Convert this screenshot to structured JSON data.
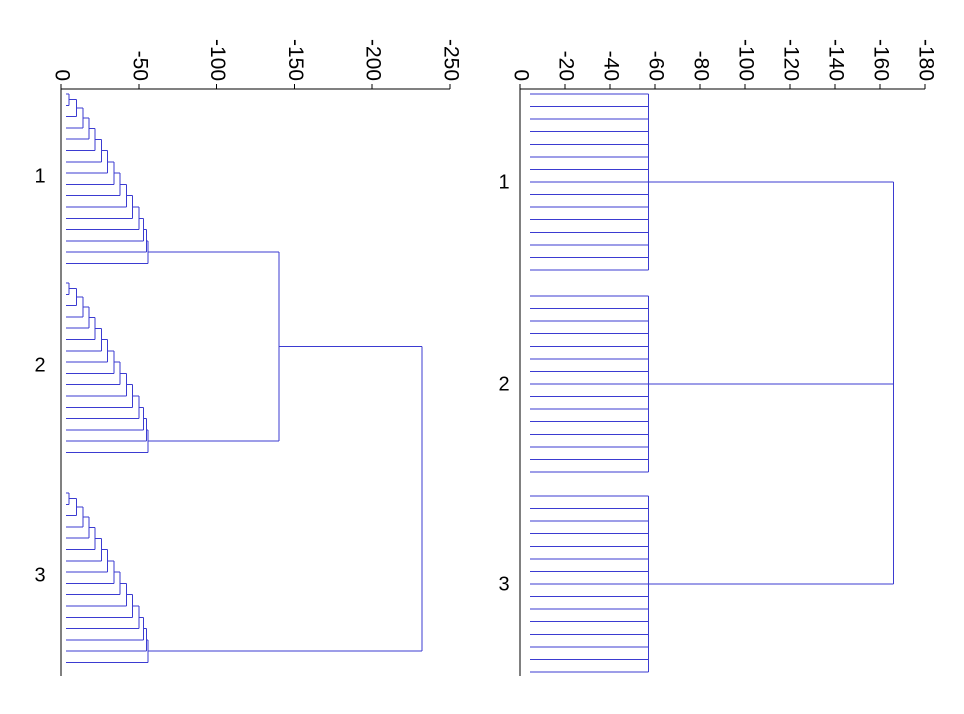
{
  "colors": {
    "branch": "#3b3bd1",
    "axis": "#000000",
    "background": "#ffffff"
  },
  "chart_data": [
    {
      "type": "dendrogram",
      "orientation": "horizontal",
      "x_axis": {
        "ticks": [
          0,
          -50,
          -100,
          -150,
          -200,
          -250
        ],
        "tick_labels": [
          "0",
          "-50",
          "-100",
          "-150",
          "-200",
          "-250"
        ],
        "range": [
          0,
          -250
        ]
      },
      "cluster_labels": [
        "1",
        "2",
        "3"
      ],
      "leaves_per_cluster": 16,
      "within_cluster_merge_heights": [
        -5,
        -10,
        -14,
        -18,
        -22,
        -26,
        -30,
        -34,
        -38,
        -42,
        -46,
        -50,
        -53,
        -55,
        -56
      ],
      "cluster_merge_heights": [
        -57,
        -57,
        -57
      ],
      "top_merges": [
        {
          "clusters": [
            "1",
            "2"
          ],
          "height": -140
        },
        {
          "clusters": [
            "1+2",
            "3"
          ],
          "height": -232
        }
      ]
    },
    {
      "type": "dendrogram",
      "orientation": "horizontal",
      "x_axis": {
        "ticks": [
          0,
          -20,
          -40,
          -60,
          -80,
          -100,
          -120,
          -140,
          -160,
          -180
        ],
        "tick_labels": [
          "0",
          "-20",
          "-40",
          "-60",
          "-80",
          "-100",
          "-120",
          "-140",
          "-160",
          "-180"
        ],
        "range": [
          0,
          -180
        ]
      },
      "cluster_labels": [
        "1",
        "2",
        "3"
      ],
      "leaves_per_cluster": 15,
      "cluster_merge_heights": [
        -57,
        -57,
        -57
      ],
      "top_merges": [
        {
          "clusters": [
            "1",
            "2",
            "3"
          ],
          "height": -166
        }
      ]
    }
  ]
}
